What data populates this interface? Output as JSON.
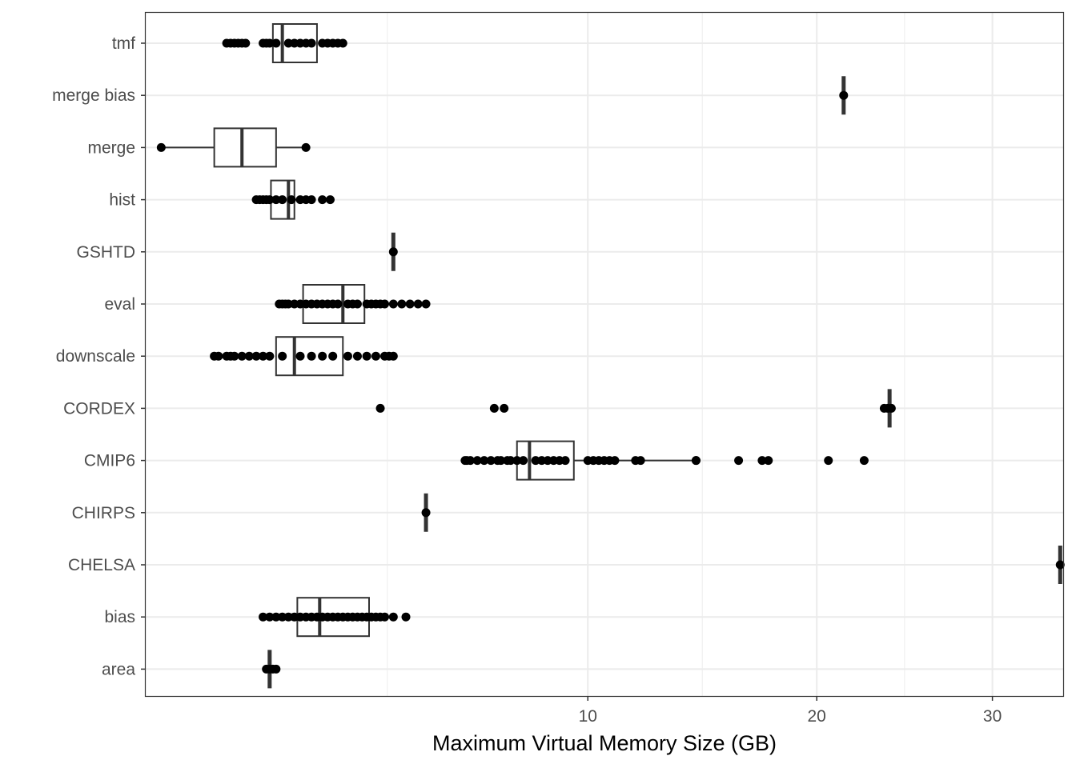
{
  "chart_data": {
    "type": "boxplot",
    "orientation": "horizontal",
    "xlabel": "Maximum Virtual Memory Size (GB)",
    "ylabel": "",
    "x_scale": "sqrt",
    "xlim": [
      0.4,
      34.6
    ],
    "x_ticks": [
      10,
      20,
      30
    ],
    "grid": true,
    "theme": "bw",
    "categories": [
      "tmf",
      "merge bias",
      "merge",
      "hist",
      "GSHTD",
      "eval",
      "downscale",
      "CORDEX",
      "CMIP6",
      "CHIRPS",
      "CHELSA",
      "bias",
      "area"
    ],
    "boxes": [
      {
        "category": "tmf",
        "q1": 1.85,
        "median": 2.0,
        "q3": 2.6,
        "outliers": [
          1.2,
          1.25,
          1.3,
          1.35,
          1.4,
          1.45,
          1.7,
          1.75,
          1.8,
          1.9,
          2.1,
          2.2,
          2.3,
          2.4,
          2.5,
          2.7,
          2.8,
          2.9,
          3.0,
          3.1
        ]
      },
      {
        "category": "merge bias",
        "median": 21.4,
        "outliers": [
          21.4
        ]
      },
      {
        "category": "merge",
        "whisker_low": 0.52,
        "q1": 1.05,
        "median": 1.4,
        "q3": 1.9,
        "whisker_high": 2.4,
        "outliers": []
      },
      {
        "category": "hist",
        "q1": 1.82,
        "median": 2.1,
        "q3": 2.2,
        "outliers": [
          1.6,
          1.65,
          1.7,
          1.75,
          1.8,
          1.9,
          2.0,
          2.15,
          2.3,
          2.4,
          2.5,
          2.7,
          2.85
        ]
      },
      {
        "category": "GSHTD",
        "median": 4.2,
        "outliers": [
          4.2
        ]
      },
      {
        "category": "eval",
        "q1": 2.35,
        "median": 3.1,
        "q3": 3.55,
        "outliers": [
          1.95,
          2.0,
          2.05,
          2.1,
          2.2,
          2.3,
          2.4,
          2.5,
          2.6,
          2.7,
          2.8,
          2.9,
          3.0,
          3.2,
          3.3,
          3.4,
          3.6,
          3.7,
          3.8,
          3.9,
          4.0,
          4.2,
          4.4,
          4.6,
          4.8,
          5.0
        ]
      },
      {
        "category": "downscale",
        "q1": 1.9,
        "median": 2.2,
        "q3": 3.1,
        "outliers": [
          1.05,
          1.1,
          1.2,
          1.25,
          1.3,
          1.4,
          1.5,
          1.6,
          1.7,
          1.8,
          2.0,
          2.3,
          2.5,
          2.7,
          2.9,
          3.2,
          3.4,
          3.6,
          3.8,
          4.0,
          4.1,
          4.2
        ]
      },
      {
        "category": "CORDEX",
        "median": 23.9,
        "outliers": [
          3.9,
          6.9,
          7.2,
          23.6,
          23.8,
          24.0
        ]
      },
      {
        "category": "CMIP6",
        "whisker_low": 6.05,
        "q1": 7.6,
        "median": 8.0,
        "q3": 9.5,
        "whisker_high": 14.3,
        "outliers": [
          6.1,
          6.2,
          6.4,
          6.6,
          6.8,
          7.0,
          7.1,
          7.3,
          7.4,
          7.6,
          7.8,
          8.2,
          8.4,
          8.6,
          8.8,
          9.0,
          9.2,
          10.0,
          10.2,
          10.4,
          10.6,
          10.8,
          11.0,
          11.8,
          12.0,
          14.3,
          16.2,
          17.3,
          17.6,
          20.6,
          22.5
        ]
      },
      {
        "category": "CHIRPS",
        "median": 5.0,
        "outliers": [
          5.0
        ]
      },
      {
        "category": "CHELSA",
        "median": 34.4,
        "outliers": [
          34.4
        ]
      },
      {
        "category": "bias",
        "q1": 2.25,
        "median": 2.65,
        "q3": 3.65,
        "outliers": [
          1.7,
          1.8,
          1.9,
          2.0,
          2.1,
          2.2,
          2.3,
          2.4,
          2.5,
          2.6,
          2.7,
          2.8,
          2.9,
          3.0,
          3.1,
          3.2,
          3.3,
          3.4,
          3.5,
          3.6,
          3.7,
          3.8,
          3.9,
          4.0,
          4.2,
          4.5
        ]
      },
      {
        "category": "area",
        "median": 1.8,
        "outliers": [
          1.75,
          1.8,
          1.85,
          1.9
        ]
      }
    ]
  }
}
